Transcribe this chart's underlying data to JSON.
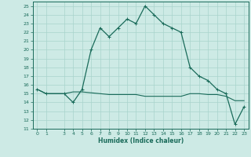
{
  "xlabel": "Humidex (Indice chaleur)",
  "ylabel": "",
  "bg_color": "#cdeae5",
  "line_color": "#1a6b5a",
  "grid_color": "#a8d4cc",
  "xlim": [
    -0.5,
    23.5
  ],
  "ylim": [
    11,
    25.5
  ],
  "xticks": [
    0,
    1,
    3,
    4,
    5,
    6,
    7,
    8,
    9,
    10,
    11,
    12,
    13,
    14,
    15,
    16,
    17,
    18,
    19,
    20,
    21,
    22,
    23
  ],
  "yticks": [
    11,
    12,
    13,
    14,
    15,
    16,
    17,
    18,
    19,
    20,
    21,
    22,
    23,
    24,
    25
  ],
  "humidex_x": [
    0,
    1,
    3,
    4,
    5,
    6,
    7,
    8,
    9,
    10,
    11,
    12,
    13,
    14,
    15,
    16,
    17,
    18,
    19,
    20,
    21,
    22,
    23
  ],
  "humidex_y": [
    15.5,
    15.0,
    15.0,
    14.0,
    15.5,
    20.0,
    22.5,
    21.5,
    22.5,
    23.5,
    23.0,
    25.0,
    24.0,
    23.0,
    22.5,
    22.0,
    18.0,
    17.0,
    16.5,
    15.5,
    15.0,
    11.5,
    13.5
  ],
  "flat_x": [
    0,
    1,
    3,
    4,
    5,
    6,
    7,
    8,
    9,
    10,
    11,
    12,
    13,
    14,
    15,
    16,
    17,
    18,
    19,
    20,
    21,
    22,
    23
  ],
  "flat_y": [
    15.5,
    15.0,
    15.0,
    15.2,
    15.2,
    15.1,
    15.0,
    14.9,
    14.9,
    14.9,
    14.9,
    14.7,
    14.7,
    14.7,
    14.7,
    14.7,
    15.0,
    15.0,
    14.9,
    14.9,
    14.7,
    14.2,
    14.2
  ],
  "marker_x": [
    0,
    1,
    3,
    4,
    5,
    6,
    7,
    8,
    9,
    10,
    11,
    12,
    13,
    14,
    15,
    16,
    17,
    18,
    19,
    20,
    21,
    22,
    23
  ],
  "marker_y": [
    15.5,
    15.0,
    15.0,
    14.0,
    15.5,
    20.0,
    22.5,
    21.5,
    22.5,
    23.5,
    23.0,
    25.0,
    24.0,
    23.0,
    22.5,
    22.0,
    18.0,
    17.0,
    16.5,
    15.5,
    15.0,
    11.5,
    13.5
  ]
}
